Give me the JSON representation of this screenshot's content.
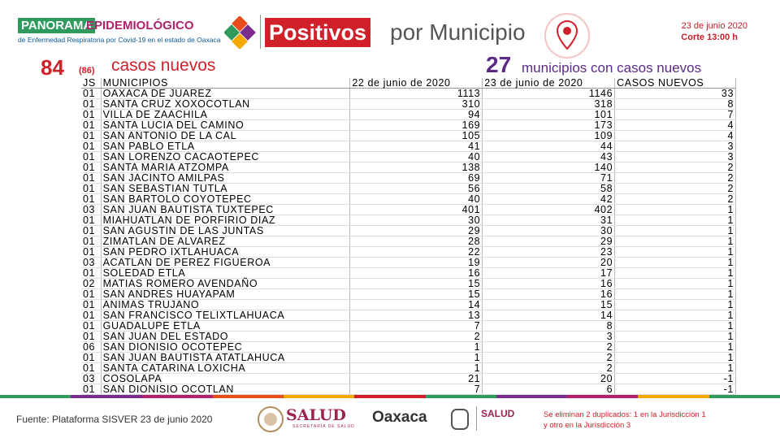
{
  "header": {
    "brand_1": "PANORAMA",
    "brand_2": "EPIDEMIOLÓGICO",
    "brand_sub": "de Enfermedad Respiratoria por Covid-19 en el estado de Oaxaca",
    "title_bold": "Positivos",
    "title_rest": "por Municipio",
    "date": "23 de junio 2020",
    "cut": "Corte 13:00 h"
  },
  "summary": {
    "new_cases": "84",
    "new_cases_alt": "(86)",
    "new_cases_label": "casos nuevos",
    "municipalities": "27",
    "municipalities_label": "municipios con casos nuevos"
  },
  "table": {
    "columns": [
      "JS",
      "MUNICIPIOS",
      "22 de junio de 2020",
      "23 de junio de 2020",
      "CASOS NUEVOS"
    ],
    "rows": [
      [
        "01",
        "OAXACA DE JUAREZ",
        1113,
        1146,
        33
      ],
      [
        "01",
        "SANTA CRUZ XOXOCOTLAN",
        310,
        318,
        8
      ],
      [
        "01",
        "VILLA DE ZAACHILA",
        94,
        101,
        7
      ],
      [
        "01",
        "SANTA LUCIA DEL CAMINO",
        169,
        173,
        4
      ],
      [
        "01",
        "SAN ANTONIO DE LA CAL",
        105,
        109,
        4
      ],
      [
        "01",
        "SAN PABLO ETLA",
        41,
        44,
        3
      ],
      [
        "01",
        "SAN LORENZO CACAOTEPEC",
        40,
        43,
        3
      ],
      [
        "01",
        "SANTA MARIA ATZOMPA",
        138,
        140,
        2
      ],
      [
        "01",
        "SAN JACINTO AMILPAS",
        69,
        71,
        2
      ],
      [
        "01",
        "SAN SEBASTIAN TUTLA",
        56,
        58,
        2
      ],
      [
        "01",
        "SAN BARTOLO COYOTEPEC",
        40,
        42,
        2
      ],
      [
        "03",
        "SAN JUAN BAUTISTA TUXTEPEC",
        401,
        402,
        1
      ],
      [
        "01",
        "MIAHUATLAN DE PORFIRIO DIAZ",
        30,
        31,
        1
      ],
      [
        "01",
        "SAN AGUSTIN DE LAS JUNTAS",
        29,
        30,
        1
      ],
      [
        "01",
        "ZIMATLAN DE ALVAREZ",
        28,
        29,
        1
      ],
      [
        "01",
        "SAN PEDRO IXTLAHUACA",
        22,
        23,
        1
      ],
      [
        "03",
        "ACATLAN DE PEREZ FIGUEROA",
        19,
        20,
        1
      ],
      [
        "01",
        "SOLEDAD ETLA",
        16,
        17,
        1
      ],
      [
        "02",
        "MATIAS ROMERO AVENDAÑO",
        15,
        16,
        1
      ],
      [
        "01",
        "SAN ANDRES HUAYAPAM",
        15,
        16,
        1
      ],
      [
        "01",
        "ANIMAS TRUJANO",
        14,
        15,
        1
      ],
      [
        "01",
        "SAN FRANCISCO TELIXTLAHUACA",
        13,
        14,
        1
      ],
      [
        "01",
        "GUADALUPE ETLA",
        7,
        8,
        1
      ],
      [
        "01",
        "SAN JUAN DEL ESTADO",
        2,
        3,
        1
      ],
      [
        "06",
        "SAN DIONISIO OCOTEPEC",
        1,
        2,
        1
      ],
      [
        "01",
        "SAN JUAN BAUTISTA ATATLAHUCA",
        1,
        2,
        1
      ],
      [
        "01",
        "SANTA CATARINA LOXICHA",
        1,
        2,
        1
      ],
      [
        "03",
        "COSOLAPA",
        21,
        20,
        -1
      ],
      [
        "01",
        "SAN DIONISIO OCOTLAN",
        7,
        6,
        -1
      ]
    ]
  },
  "footer": {
    "source": "Fuente: Plataforma SISVER 23 de junio 2020",
    "logo_salud": "SALUD",
    "logo_salud_sub": "SECRETARÍA DE SALUD",
    "logo_oaxaca": "Oaxaca",
    "logo_salud_state": "SALUD",
    "note": [
      "Se eliminan 2 duplicados: 1 en la Jurisdicción 1",
      "y otro en la Jurisdicción 3"
    ]
  }
}
